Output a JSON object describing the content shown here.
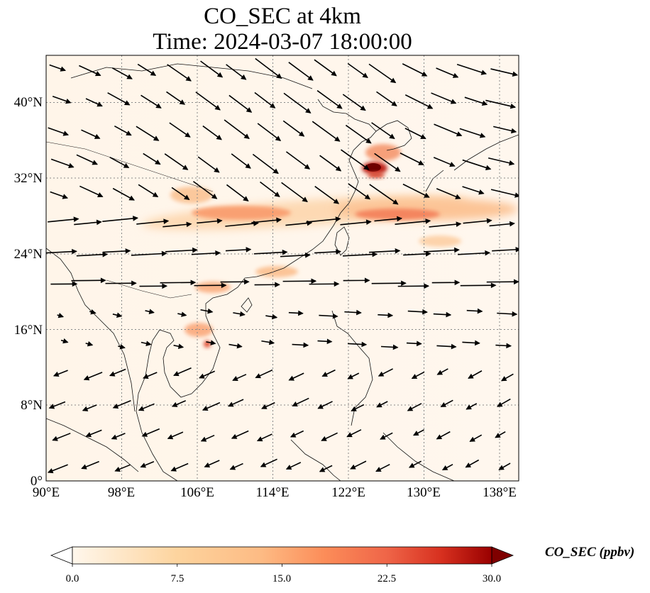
{
  "title": {
    "line1": "CO_SEC at 4km",
    "line2": "Time: 2024-03-07 18:00:00"
  },
  "map": {
    "lon_ticks": [
      "90°E",
      "98°E",
      "106°E",
      "114°E",
      "122°E",
      "130°E",
      "138°E"
    ],
    "lat_ticks": [
      "40°N",
      "32°N",
      "24°N",
      "16°N",
      "8°N",
      "0°"
    ],
    "gridlines": true,
    "gridline_style": "dotted",
    "variable": "CO_SEC",
    "level": "4km",
    "overlay": "wind vectors (black arrows)"
  },
  "colorbar": {
    "label": "CO_SEC (ppbv)",
    "ticks": [
      "0.0",
      "7.5",
      "15.0",
      "22.5",
      "30.0"
    ],
    "min": 0.0,
    "max": 30.0,
    "colormap": "OrRd",
    "extend": "both"
  },
  "colors": {
    "background_low": "#fff7ec",
    "mid": "#fdbb84",
    "high": "#d7301f",
    "max": "#7f0000"
  }
}
